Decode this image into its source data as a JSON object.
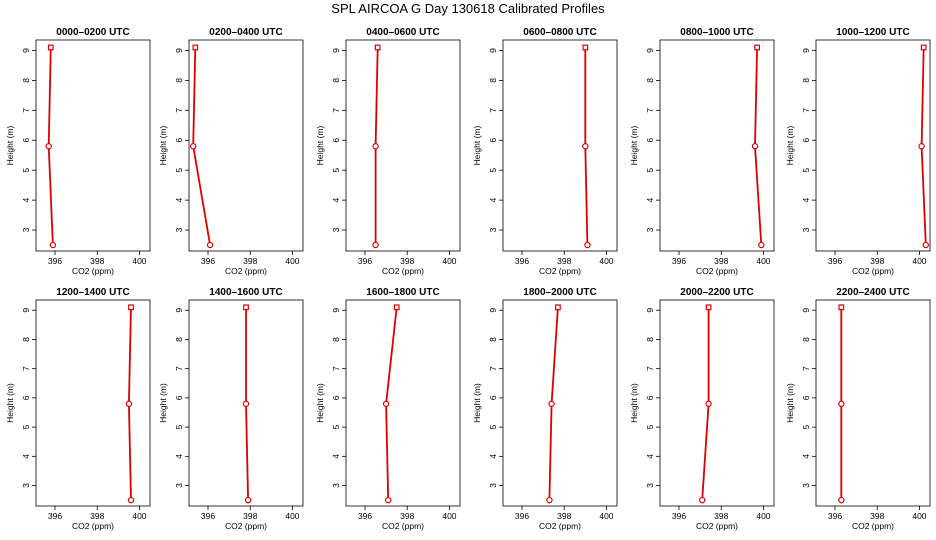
{
  "title": "SPL AIRCOA G  Day 130618  Calibrated Profiles",
  "chart_data": {
    "type": "line",
    "xlabel": "CO2 (ppm)",
    "ylabel": "Height (m)",
    "xlim": [
      395.1,
      400.5
    ],
    "ylim": [
      2.3,
      9.35
    ],
    "xticks": [
      396,
      398,
      400
    ],
    "yticks": [
      3,
      4,
      5,
      6,
      7,
      8,
      9
    ],
    "grid": false,
    "line_color": "#dd0000",
    "panels": [
      {
        "title": "0000–0200 UTC",
        "x": [
          395.8,
          395.7,
          395.9
        ],
        "y": [
          9.1,
          5.8,
          2.5
        ]
      },
      {
        "title": "0200–0400 UTC",
        "x": [
          395.4,
          395.3,
          396.1
        ],
        "y": [
          9.1,
          5.8,
          2.5
        ]
      },
      {
        "title": "0400–0600 UTC",
        "x": [
          396.6,
          396.5,
          396.5
        ],
        "y": [
          9.1,
          5.8,
          2.5
        ]
      },
      {
        "title": "0600–0800 UTC",
        "x": [
          399.0,
          399.0,
          399.1
        ],
        "y": [
          9.1,
          5.8,
          2.5
        ]
      },
      {
        "title": "0800–1000 UTC",
        "x": [
          399.7,
          399.6,
          399.9
        ],
        "y": [
          9.1,
          5.8,
          2.5
        ]
      },
      {
        "title": "1000–1200 UTC",
        "x": [
          400.2,
          400.1,
          400.3
        ],
        "y": [
          9.1,
          5.8,
          2.5
        ]
      },
      {
        "title": "1200–1400 UTC",
        "x": [
          399.6,
          399.5,
          399.6
        ],
        "y": [
          9.1,
          5.8,
          2.5
        ]
      },
      {
        "title": "1400–1600 UTC",
        "x": [
          397.8,
          397.8,
          397.9
        ],
        "y": [
          9.1,
          5.8,
          2.5
        ]
      },
      {
        "title": "1600–1800 UTC",
        "x": [
          397.5,
          397.0,
          397.1
        ],
        "y": [
          9.1,
          5.8,
          2.5
        ]
      },
      {
        "title": "1800–2000 UTC",
        "x": [
          397.7,
          397.4,
          397.3
        ],
        "y": [
          9.1,
          5.8,
          2.5
        ]
      },
      {
        "title": "2000–2200 UTC",
        "x": [
          397.4,
          397.4,
          397.1
        ],
        "y": [
          9.1,
          5.8,
          2.5
        ]
      },
      {
        "title": "2200–2400 UTC",
        "x": [
          396.3,
          396.3,
          396.3
        ],
        "y": [
          9.1,
          5.8,
          2.5
        ]
      }
    ]
  }
}
